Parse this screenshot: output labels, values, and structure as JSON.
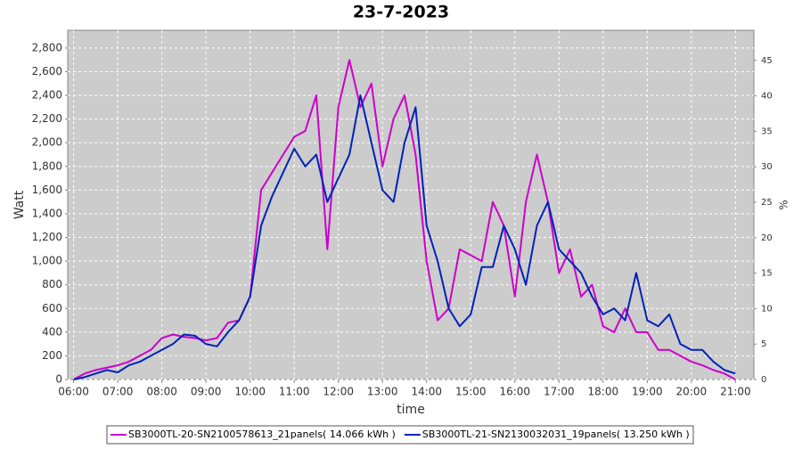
{
  "chart_data": {
    "type": "line",
    "title": "23-7-2023",
    "x_label": "time",
    "y_label": "Watt",
    "y2_label": "%",
    "x": [
      "06:00",
      "06:15",
      "06:30",
      "06:45",
      "07:00",
      "07:15",
      "07:30",
      "07:45",
      "08:00",
      "08:15",
      "08:30",
      "08:45",
      "09:00",
      "09:15",
      "09:30",
      "09:45",
      "10:00",
      "10:15",
      "10:30",
      "10:45",
      "11:00",
      "11:15",
      "11:30",
      "11:45",
      "12:00",
      "12:15",
      "12:30",
      "12:45",
      "13:00",
      "13:15",
      "13:30",
      "13:45",
      "14:00",
      "14:15",
      "14:30",
      "14:45",
      "15:00",
      "15:15",
      "15:30",
      "15:45",
      "16:00",
      "16:15",
      "16:30",
      "16:45",
      "17:00",
      "17:15",
      "17:30",
      "17:45",
      "18:00",
      "18:15",
      "18:30",
      "18:45",
      "19:00",
      "19:15",
      "19:30",
      "19:45",
      "20:00",
      "20:15",
      "20:30",
      "20:45",
      "21:00"
    ],
    "series": [
      {
        "name": "SB3000TL-20-SN2100578613_21panels( 14.066 kWh )",
        "color": "#cc00cc",
        "values": [
          0,
          50,
          80,
          100,
          120,
          150,
          200,
          250,
          350,
          380,
          360,
          350,
          330,
          350,
          480,
          500,
          700,
          1600,
          1750,
          1900,
          2050,
          2100,
          2400,
          1100,
          2300,
          2700,
          2300,
          2500,
          1800,
          2200,
          2400,
          1900,
          1000,
          500,
          600,
          1100,
          1050,
          1000,
          1500,
          1300,
          700,
          1500,
          1900,
          1500,
          900,
          1100,
          700,
          800,
          450,
          400,
          600,
          400,
          400,
          250,
          250,
          200,
          150,
          120,
          80,
          50,
          0
        ]
      },
      {
        "name": "SB3000TL-21-SN2130032031_19panels( 13.250 kWh )",
        "color": "#0022bb",
        "values": [
          0,
          20,
          50,
          80,
          60,
          120,
          150,
          200,
          250,
          300,
          380,
          370,
          300,
          280,
          400,
          500,
          700,
          1300,
          1550,
          1750,
          1950,
          1800,
          1900,
          1500,
          1700,
          1900,
          2400,
          2000,
          1600,
          1500,
          2000,
          2300,
          1300,
          1000,
          600,
          450,
          550,
          950,
          950,
          1300,
          1100,
          800,
          1300,
          1500,
          1100,
          1000,
          900,
          700,
          550,
          600,
          500,
          900,
          500,
          450,
          550,
          300,
          250,
          250,
          150,
          80,
          50
        ]
      }
    ],
    "xlim": [
      "05:52",
      "21:25"
    ],
    "xticks": [
      "06:00",
      "07:00",
      "08:00",
      "09:00",
      "10:00",
      "11:00",
      "12:00",
      "13:00",
      "14:00",
      "15:00",
      "16:00",
      "17:00",
      "18:00",
      "19:00",
      "20:00",
      "21:00"
    ],
    "ylim": [
      0,
      2950
    ],
    "yticks": [
      0,
      200,
      400,
      600,
      800,
      {
        "value": 1000,
        "label": "1,000"
      },
      {
        "value": 1200,
        "label": "1,200"
      },
      {
        "value": 1400,
        "label": "1,400"
      },
      {
        "value": 1600,
        "label": "1,600"
      },
      {
        "value": 1800,
        "label": "1,800"
      },
      {
        "value": 2000,
        "label": "2,000"
      },
      {
        "value": 2200,
        "label": "2,200"
      },
      {
        "value": 2400,
        "label": "2,400"
      },
      {
        "value": 2600,
        "label": "2,600"
      },
      {
        "value": 2800,
        "label": "2,800"
      }
    ],
    "y2lim": [
      0,
      49.25
    ],
    "y2ticks": [
      0,
      5,
      10,
      15,
      20,
      25,
      30,
      35,
      40,
      45
    ],
    "grid": true
  }
}
